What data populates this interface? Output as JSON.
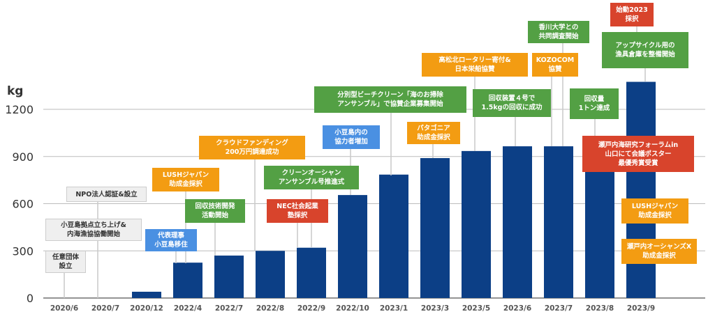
{
  "chart_data": {
    "type": "bar",
    "ylabel": "kg",
    "ylim": [
      0,
      1300
    ],
    "yticks": [
      0,
      300,
      600,
      900,
      1200
    ],
    "grid": true,
    "bar_color": "#0c3f86",
    "categories": [
      "2020/6",
      "2020/7",
      "2020/12",
      "2022/4",
      "2022/7",
      "2022/8",
      "2022/9",
      "2022/10",
      "2023/1",
      "2023/3",
      "2023/5",
      "2023/6",
      "2023/7",
      "2023/8",
      "2023/9"
    ],
    "values": [
      0,
      0,
      40,
      225,
      270,
      300,
      320,
      655,
      785,
      890,
      935,
      965,
      965,
      1000,
      1375
    ],
    "annotations": [
      {
        "category": "2020/6",
        "text": "任意団体\n設立",
        "color": "gray"
      },
      {
        "category": "2020/7",
        "text": "小豆島拠点立ち上げ&\n内海漁協協働開始",
        "color": "gray"
      },
      {
        "category": "2020/7",
        "text": "NPO法人認証&設立",
        "color": "gray"
      },
      {
        "category": "2022/4",
        "text": "代表理事\n小豆島移住",
        "color": "blue"
      },
      {
        "category": "2022/4",
        "text": "LUSHジャパン\n助成金採択",
        "color": "orange"
      },
      {
        "category": "2022/7",
        "text": "回収技術開発\n活動開始",
        "color": "green"
      },
      {
        "category": "2022/8",
        "text": "クラウドファンディング\n200万円調達成功",
        "color": "orange"
      },
      {
        "category": "2022/9",
        "text": "NEC社会起業\n塾採択",
        "color": "red"
      },
      {
        "category": "2022/9",
        "text": "クリーンオーシャン\nアンサンブル号推進式",
        "color": "green"
      },
      {
        "category": "2022/10",
        "text": "小豆島内の\n協力者増加",
        "color": "blue"
      },
      {
        "category": "2023/1",
        "text": "分別型ビーチクリーン「海のお掃除\nアンサンブル」で協賛企業募集開始",
        "color": "green"
      },
      {
        "category": "2023/3",
        "text": "パタゴニア\n助成金採択",
        "color": "orange"
      },
      {
        "category": "2023/5",
        "text": "回収装置４号で\n1.5kgの回収に成功",
        "color": "green"
      },
      {
        "category": "2023/5",
        "text": "高松北ロータリー寄付&\n日本栄船協賛",
        "color": "orange"
      },
      {
        "category": "2023/7",
        "text": "KOZOCOM\n協賛",
        "color": "orange"
      },
      {
        "category": "2023/7",
        "text": "香川大学との\n共同調査開始",
        "color": "green"
      },
      {
        "category": "2023/8",
        "text": "回収量\n1トン達成",
        "color": "green"
      },
      {
        "category": "2023/8",
        "text": "瀬戸内海研究フォーラムin\n山口にて会議ポスター\n最優秀賞受賞",
        "color": "red"
      },
      {
        "category": "2023/9",
        "text": "始動2023\n採択",
        "color": "red"
      },
      {
        "category": "2023/9",
        "text": "アップサイクル用の\n漁具倉庫を整備開始",
        "color": "green"
      },
      {
        "category": "2023/9",
        "text": "LUSHジャパン\n助成金採択",
        "color": "orange"
      },
      {
        "category": "2023/9",
        "text": "瀬戸内オーシャンズX\n助成金採択",
        "color": "orange"
      }
    ]
  }
}
